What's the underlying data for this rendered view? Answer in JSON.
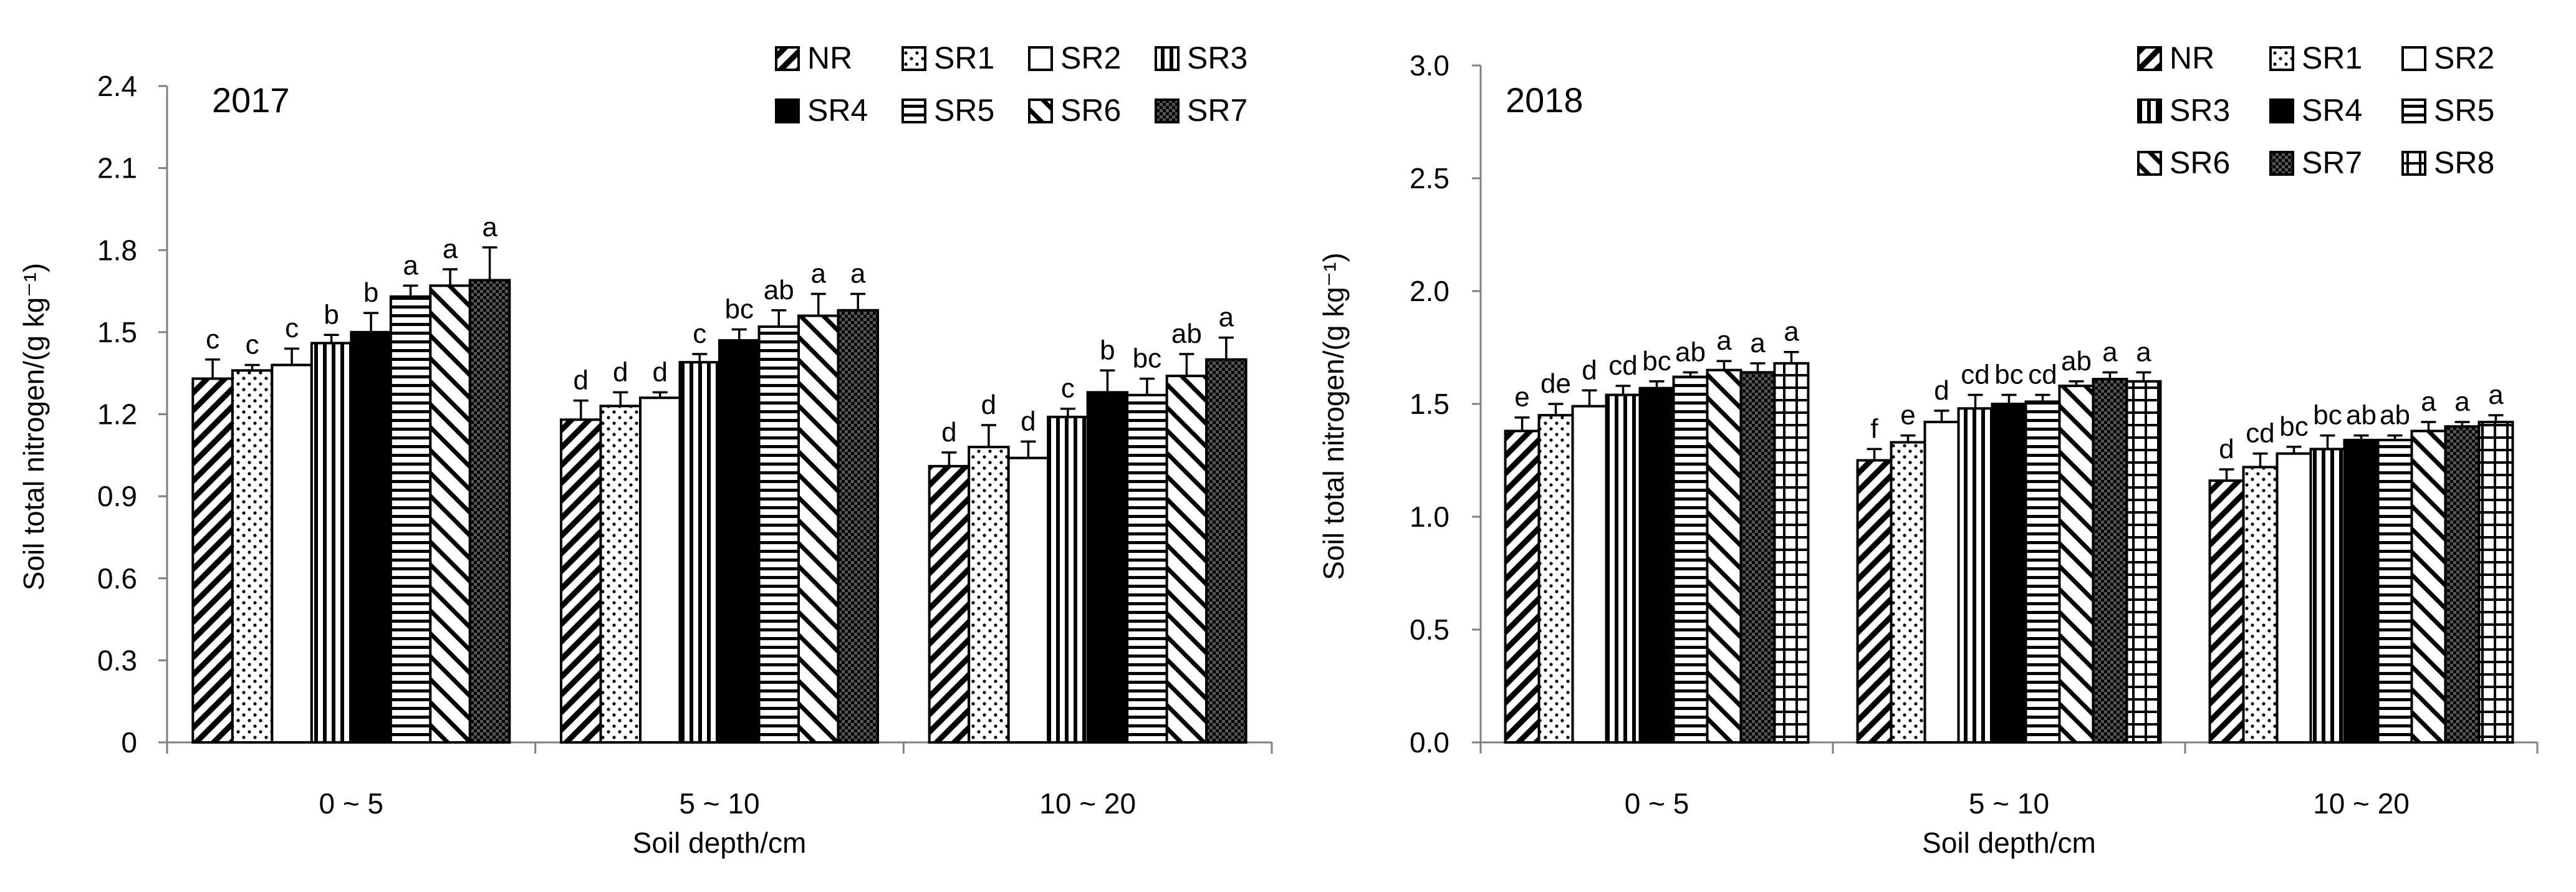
{
  "chart_data": [
    {
      "type": "bar",
      "title": "2017",
      "xlabel": "Soil depth/cm",
      "ylabel": "Soil total nitrogen/(g kg⁻¹)",
      "ylim": [
        0,
        2.4
      ],
      "yticks": [
        "0",
        "0.3",
        "0.6",
        "0.9",
        "1.2",
        "1.5",
        "1.8",
        "2.1",
        "2.4"
      ],
      "categories": [
        "0 ~ 5",
        "5 ~ 10",
        "10 ~ 20"
      ],
      "legend_position": "top-right",
      "series": [
        {
          "name": "NR",
          "pattern": "diagonal-hatch",
          "values": [
            1.33,
            1.18,
            1.01
          ],
          "errors": [
            0.07,
            0.07,
            0.05
          ],
          "letters": [
            "c",
            "d",
            "d"
          ]
        },
        {
          "name": "SR1",
          "pattern": "dots",
          "values": [
            1.36,
            1.23,
            1.08
          ],
          "errors": [
            0.02,
            0.05,
            0.08
          ],
          "letters": [
            "c",
            "d",
            "d"
          ]
        },
        {
          "name": "SR2",
          "pattern": "white",
          "values": [
            1.38,
            1.26,
            1.04
          ],
          "errors": [
            0.06,
            0.02,
            0.06
          ],
          "letters": [
            "c",
            "d",
            "d"
          ]
        },
        {
          "name": "SR3",
          "pattern": "vertical-lines",
          "values": [
            1.46,
            1.39,
            1.19
          ],
          "errors": [
            0.03,
            0.03,
            0.03
          ],
          "letters": [
            "b",
            "c",
            "c"
          ]
        },
        {
          "name": "SR4",
          "pattern": "black",
          "values": [
            1.5,
            1.47,
            1.28
          ],
          "errors": [
            0.07,
            0.04,
            0.08
          ],
          "letters": [
            "b",
            "bc",
            "b"
          ]
        },
        {
          "name": "SR5",
          "pattern": "horizontal-lines",
          "values": [
            1.63,
            1.52,
            1.27
          ],
          "errors": [
            0.04,
            0.06,
            0.06
          ],
          "letters": [
            "a",
            "ab",
            "bc"
          ]
        },
        {
          "name": "SR6",
          "pattern": "wide-diagonal",
          "values": [
            1.67,
            1.56,
            1.34
          ],
          "errors": [
            0.06,
            0.08,
            0.08
          ],
          "letters": [
            "a",
            "a",
            "ab"
          ]
        },
        {
          "name": "SR7",
          "pattern": "checker",
          "values": [
            1.69,
            1.58,
            1.4
          ],
          "errors": [
            0.12,
            0.06,
            0.08
          ],
          "letters": [
            "a",
            "a",
            "a"
          ]
        }
      ]
    },
    {
      "type": "bar",
      "title": "2018",
      "xlabel": "Soil depth/cm",
      "ylabel": "Soil total nitrogen/(g kg⁻¹)",
      "ylim": [
        0,
        3.0
      ],
      "yticks": [
        "0.0",
        "0.5",
        "1.0",
        "1.5",
        "2.0",
        "2.5",
        "3.0"
      ],
      "categories": [
        "0 ~ 5",
        "5 ~ 10",
        "10 ~ 20"
      ],
      "legend_position": "top-right",
      "series": [
        {
          "name": "NR",
          "pattern": "diagonal-hatch",
          "values": [
            1.38,
            1.25,
            1.16
          ],
          "errors": [
            0.06,
            0.05,
            0.05
          ],
          "letters": [
            "e",
            "f",
            "d"
          ]
        },
        {
          "name": "SR1",
          "pattern": "dots",
          "values": [
            1.45,
            1.33,
            1.22
          ],
          "errors": [
            0.05,
            0.03,
            0.06
          ],
          "letters": [
            "de",
            "e",
            "cd"
          ]
        },
        {
          "name": "SR2",
          "pattern": "white",
          "values": [
            1.49,
            1.42,
            1.28
          ],
          "errors": [
            0.07,
            0.05,
            0.03
          ],
          "letters": [
            "d",
            "d",
            "bc"
          ]
        },
        {
          "name": "SR3",
          "pattern": "vertical-lines",
          "values": [
            1.54,
            1.48,
            1.3
          ],
          "errors": [
            0.04,
            0.06,
            0.06
          ],
          "letters": [
            "cd",
            "cd",
            "bc"
          ]
        },
        {
          "name": "SR4",
          "pattern": "black",
          "values": [
            1.57,
            1.5,
            1.34
          ],
          "errors": [
            0.03,
            0.04,
            0.02
          ],
          "letters": [
            "bc",
            "bc",
            "ab"
          ]
        },
        {
          "name": "SR5",
          "pattern": "horizontal-lines",
          "values": [
            1.62,
            1.51,
            1.34
          ],
          "errors": [
            0.02,
            0.03,
            0.02
          ],
          "letters": [
            "ab",
            "cd",
            "ab"
          ]
        },
        {
          "name": "SR6",
          "pattern": "wide-diagonal",
          "values": [
            1.65,
            1.58,
            1.38
          ],
          "errors": [
            0.04,
            0.02,
            0.04
          ],
          "letters": [
            "a",
            "ab",
            "a"
          ]
        },
        {
          "name": "SR7",
          "pattern": "checker",
          "values": [
            1.64,
            1.61,
            1.4
          ],
          "errors": [
            0.04,
            0.03,
            0.02
          ],
          "letters": [
            "a",
            "a",
            "a"
          ]
        },
        {
          "name": "SR8",
          "pattern": "grid",
          "values": [
            1.68,
            1.6,
            1.42
          ],
          "errors": [
            0.05,
            0.04,
            0.03
          ],
          "letters": [
            "a",
            "a",
            "a"
          ]
        }
      ]
    }
  ]
}
